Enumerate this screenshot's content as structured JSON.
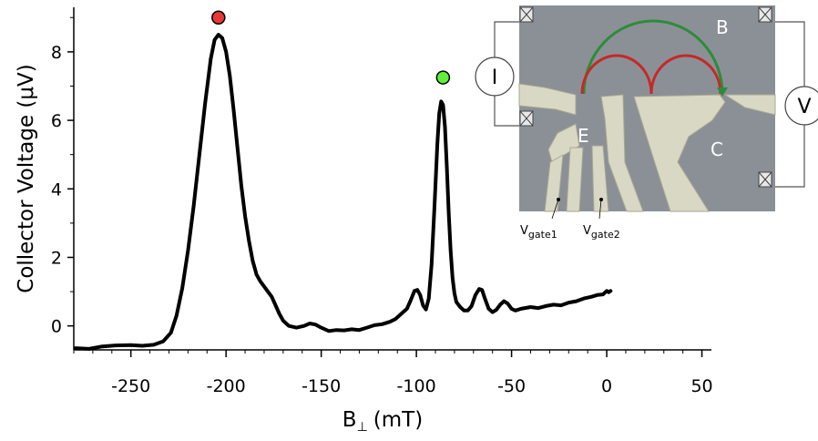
{
  "chart_data": {
    "type": "line",
    "xlabel": {
      "main": "B",
      "sub": "⊥",
      "unit": "(mT)"
    },
    "ylabel": "Collector Voltage (μV)",
    "xlim": [
      -280,
      55
    ],
    "ylim": [
      -0.7,
      9.3
    ],
    "x_ticks": [
      -250,
      -200,
      -150,
      -100,
      -50,
      0,
      50
    ],
    "x_tick_labels": [
      "-250",
      "-200",
      "-150",
      "-100",
      "-50",
      "0",
      "50"
    ],
    "y_ticks": [
      0,
      2,
      4,
      6,
      8
    ],
    "y_tick_labels": [
      "0",
      "2",
      "4",
      "6",
      "8"
    ],
    "grid": false,
    "series": [
      {
        "color": "#000000",
        "points": [
          [
            -279,
            -0.65
          ],
          [
            -272,
            -0.67
          ],
          [
            -265,
            -0.6
          ],
          [
            -258,
            -0.57
          ],
          [
            -250,
            -0.56
          ],
          [
            -244,
            -0.58
          ],
          [
            -238,
            -0.55
          ],
          [
            -233,
            -0.45
          ],
          [
            -229,
            -0.2
          ],
          [
            -226,
            0.3
          ],
          [
            -223,
            1.1
          ],
          [
            -220,
            2.2
          ],
          [
            -217,
            3.5
          ],
          [
            -214,
            5.0
          ],
          [
            -211,
            6.5
          ],
          [
            -208,
            7.8
          ],
          [
            -206,
            8.35
          ],
          [
            -204,
            8.5
          ],
          [
            -202,
            8.4
          ],
          [
            -200,
            8.0
          ],
          [
            -198,
            7.3
          ],
          [
            -196,
            6.3
          ],
          [
            -194,
            5.2
          ],
          [
            -192,
            4.1
          ],
          [
            -190,
            3.2
          ],
          [
            -188,
            2.5
          ],
          [
            -186,
            1.9
          ],
          [
            -184,
            1.5
          ],
          [
            -182,
            1.3
          ],
          [
            -180,
            1.15
          ],
          [
            -178,
            1.0
          ],
          [
            -176,
            0.85
          ],
          [
            -174,
            0.6
          ],
          [
            -172,
            0.35
          ],
          [
            -170,
            0.15
          ],
          [
            -167,
            0.0
          ],
          [
            -163,
            -0.05
          ],
          [
            -159,
            0.0
          ],
          [
            -156,
            0.07
          ],
          [
            -153,
            0.04
          ],
          [
            -150,
            -0.05
          ],
          [
            -146,
            -0.15
          ],
          [
            -142,
            -0.12
          ],
          [
            -138,
            -0.13
          ],
          [
            -134,
            -0.1
          ],
          [
            -130,
            -0.12
          ],
          [
            -126,
            -0.05
          ],
          [
            -122,
            0.02
          ],
          [
            -118,
            0.05
          ],
          [
            -114,
            0.12
          ],
          [
            -111,
            0.2
          ],
          [
            -108,
            0.35
          ],
          [
            -105,
            0.5
          ],
          [
            -103,
            0.75
          ],
          [
            -101,
            1.02
          ],
          [
            -99.5,
            1.05
          ],
          [
            -98,
            0.9
          ],
          [
            -96.5,
            0.6
          ],
          [
            -95,
            0.48
          ],
          [
            -93.5,
            0.8
          ],
          [
            -92,
            1.8
          ],
          [
            -90.5,
            3.5
          ],
          [
            -89,
            5.3
          ],
          [
            -88,
            6.2
          ],
          [
            -87,
            6.55
          ],
          [
            -86,
            6.45
          ],
          [
            -85,
            5.8
          ],
          [
            -84,
            4.6
          ],
          [
            -83,
            3.3
          ],
          [
            -82,
            2.2
          ],
          [
            -81,
            1.4
          ],
          [
            -80,
            0.95
          ],
          [
            -79,
            0.7
          ],
          [
            -77,
            0.55
          ],
          [
            -75,
            0.45
          ],
          [
            -73,
            0.45
          ],
          [
            -71,
            0.58
          ],
          [
            -69,
            0.9
          ],
          [
            -67,
            1.08
          ],
          [
            -65.5,
            1.05
          ],
          [
            -64,
            0.8
          ],
          [
            -62,
            0.5
          ],
          [
            -60,
            0.4
          ],
          [
            -58,
            0.47
          ],
          [
            -56,
            0.62
          ],
          [
            -54,
            0.72
          ],
          [
            -52,
            0.65
          ],
          [
            -50,
            0.5
          ],
          [
            -48,
            0.45
          ],
          [
            -45,
            0.5
          ],
          [
            -40,
            0.55
          ],
          [
            -36,
            0.52
          ],
          [
            -32,
            0.58
          ],
          [
            -28,
            0.62
          ],
          [
            -24,
            0.6
          ],
          [
            -20,
            0.68
          ],
          [
            -16,
            0.72
          ],
          [
            -12,
            0.8
          ],
          [
            -8,
            0.85
          ],
          [
            -5,
            0.9
          ],
          [
            -2,
            0.92
          ],
          [
            0,
            1.02
          ],
          [
            1,
            0.98
          ],
          [
            2,
            1.02
          ]
        ]
      }
    ],
    "annotations": [
      {
        "marker": "circle",
        "x": -204,
        "y": 9.0,
        "color": "#e53935"
      },
      {
        "marker": "circle",
        "x": -86,
        "y": 7.25,
        "color": "#5ef03a"
      }
    ]
  },
  "inset": {
    "labels": {
      "B": "B",
      "C": "C",
      "E": "E"
    },
    "current_meter": "I",
    "voltage_meter": "V",
    "gate1": {
      "main": "V",
      "sub": "gate1"
    },
    "gate2": {
      "main": "V",
      "sub": "gate2"
    },
    "colors": {
      "substrate": "#8b9097",
      "gates": "#d8d8c4",
      "big_arc": "#2e8b3a",
      "small_arcs": "#c62828"
    }
  }
}
